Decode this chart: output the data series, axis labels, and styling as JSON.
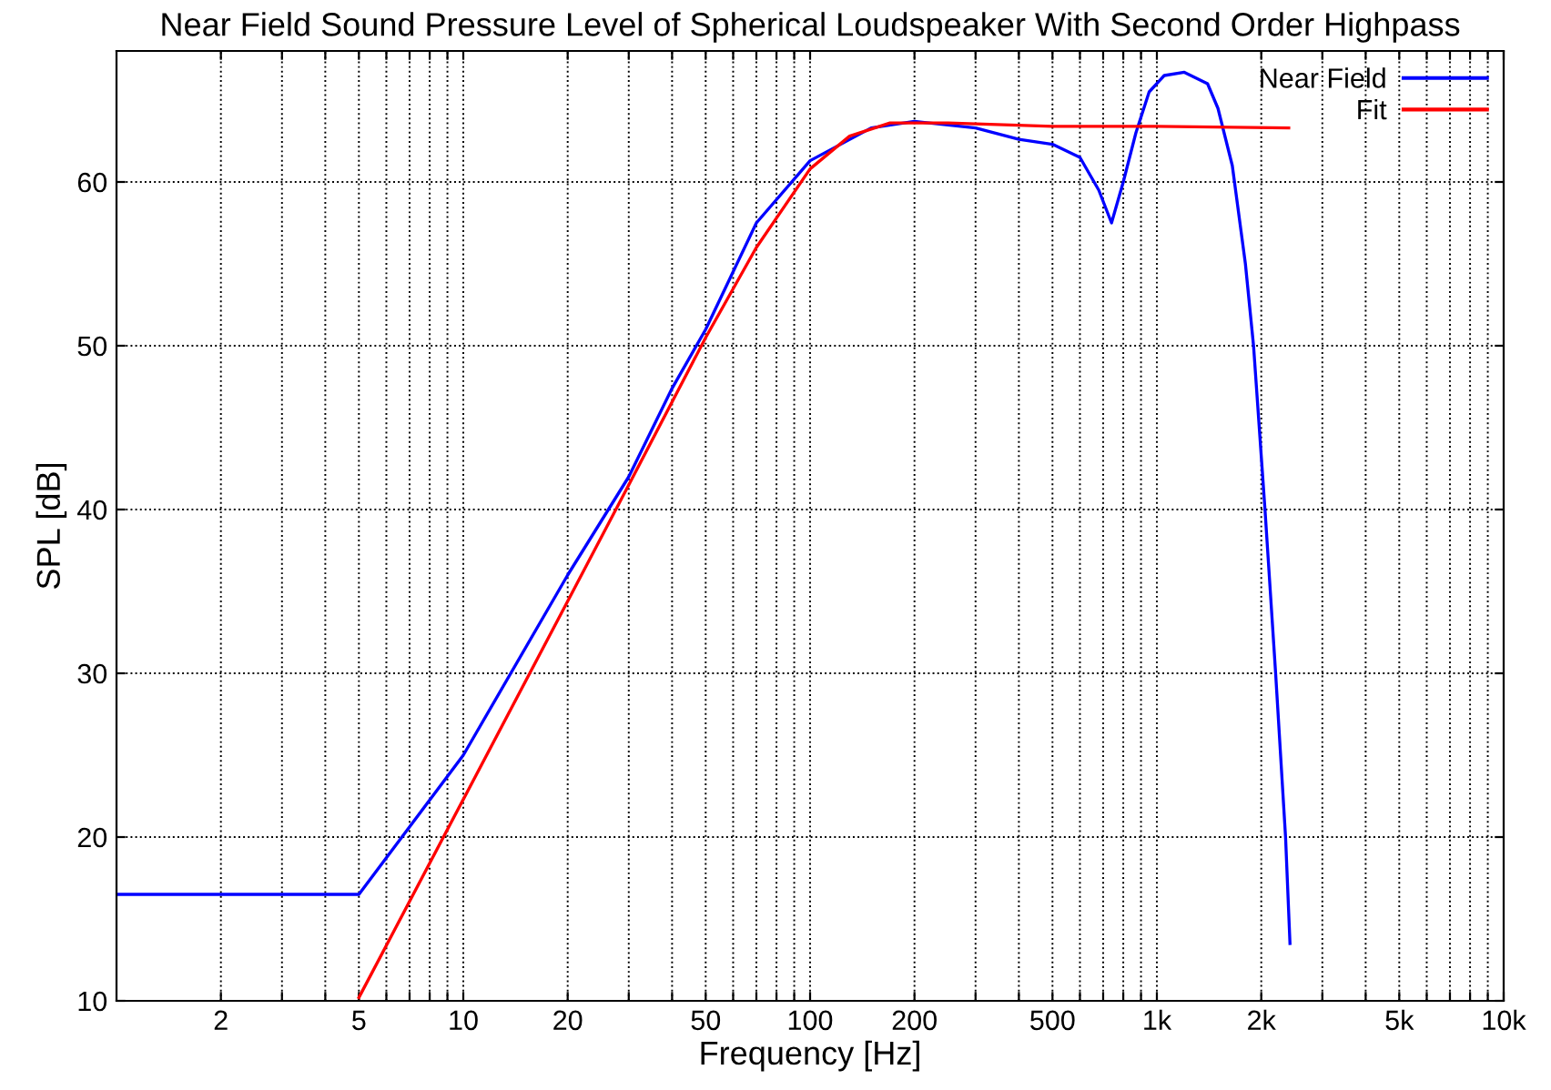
{
  "chart_data": {
    "type": "line",
    "title": "Near Field Sound Pressure Level of Spherical Loudspeaker With Second Order Highpass",
    "xlabel": "Frequency [Hz]",
    "ylabel": "SPL [dB]",
    "log": "x",
    "xlim": [
      1,
      10000
    ],
    "ylim": [
      10,
      68
    ],
    "xticks": [
      {
        "value": 2,
        "label": "2"
      },
      {
        "value": 3,
        "label": null
      },
      {
        "value": 4,
        "label": null
      },
      {
        "value": 5,
        "label": "5"
      },
      {
        "value": 6,
        "label": null
      },
      {
        "value": 7,
        "label": null
      },
      {
        "value": 8,
        "label": null
      },
      {
        "value": 9,
        "label": null
      },
      {
        "value": 10,
        "label": "10"
      },
      {
        "value": 20,
        "label": "20"
      },
      {
        "value": 30,
        "label": null
      },
      {
        "value": 40,
        "label": null
      },
      {
        "value": 50,
        "label": "50"
      },
      {
        "value": 60,
        "label": null
      },
      {
        "value": 70,
        "label": null
      },
      {
        "value": 80,
        "label": null
      },
      {
        "value": 90,
        "label": null
      },
      {
        "value": 100,
        "label": "100"
      },
      {
        "value": 200,
        "label": "200"
      },
      {
        "value": 300,
        "label": null
      },
      {
        "value": 400,
        "label": null
      },
      {
        "value": 500,
        "label": "500"
      },
      {
        "value": 600,
        "label": null
      },
      {
        "value": 700,
        "label": null
      },
      {
        "value": 800,
        "label": null
      },
      {
        "value": 900,
        "label": null
      },
      {
        "value": 1000,
        "label": "1k"
      },
      {
        "value": 2000,
        "label": "2k"
      },
      {
        "value": 3000,
        "label": null
      },
      {
        "value": 4000,
        "label": null
      },
      {
        "value": 5000,
        "label": "5k"
      },
      {
        "value": 6000,
        "label": null
      },
      {
        "value": 7000,
        "label": null
      },
      {
        "value": 8000,
        "label": null
      },
      {
        "value": 9000,
        "label": null
      },
      {
        "value": 10000,
        "label": "10k"
      }
    ],
    "yticks": [
      10,
      20,
      30,
      40,
      50,
      60
    ],
    "grid": true,
    "legend": "top right",
    "line_style": "solid",
    "series": [
      {
        "name": "Near Field",
        "color": "#0000ff",
        "x": [
          1,
          5,
          10,
          20,
          30,
          40,
          50,
          70,
          100,
          150,
          200,
          300,
          400,
          500,
          600,
          680,
          740,
          800,
          870,
          950,
          1050,
          1200,
          1400,
          1500,
          1650,
          1800,
          1900,
          2050,
          2200,
          2350,
          2420
        ],
        "values": [
          16.5,
          16.5,
          25,
          36,
          42,
          47.4,
          51,
          57.5,
          61.3,
          63.3,
          63.7,
          63.3,
          62.6,
          62.3,
          61.5,
          59.5,
          57.5,
          60,
          63,
          65.5,
          66.5,
          66.7,
          66,
          64.5,
          61,
          55,
          50,
          40,
          30,
          20,
          13.5
        ]
      },
      {
        "name": "Fit",
        "color": "#ff0000",
        "x": [
          5,
          10,
          20,
          30,
          50,
          70,
          100,
          130,
          170,
          250,
          500,
          1000,
          2400
        ],
        "values": [
          10.2,
          22.3,
          34.4,
          41.5,
          50.5,
          56,
          60.8,
          62.8,
          63.6,
          63.6,
          63.4,
          63.4,
          63.3
        ]
      }
    ]
  }
}
